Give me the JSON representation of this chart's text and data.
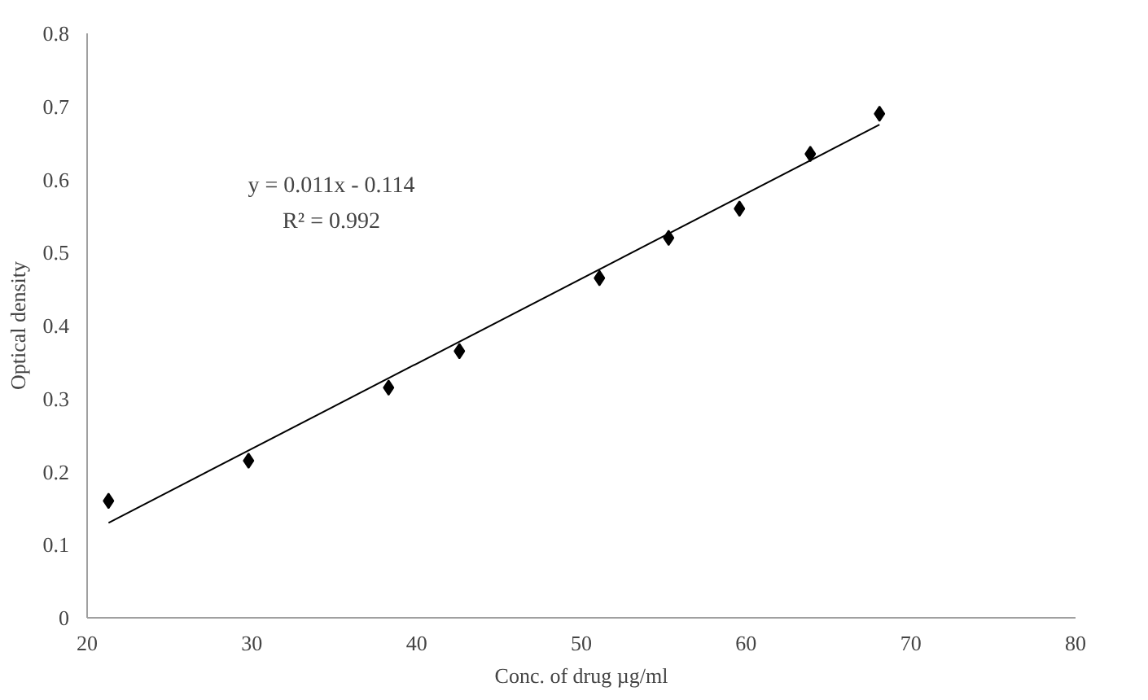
{
  "chart_data": {
    "type": "scatter",
    "xlabel": "Conc. of drug µg/ml",
    "ylabel": "Optical density",
    "xlim": [
      20,
      80
    ],
    "xticks": [
      20,
      30,
      40,
      50,
      60,
      70,
      80
    ],
    "ylim": [
      0,
      0.8
    ],
    "yticks": [
      0,
      0.1,
      0.2,
      0.3,
      0.4,
      0.5,
      0.6,
      0.7,
      0.8
    ],
    "grid": false,
    "series": [
      {
        "color": "#000000",
        "marker": "diamond",
        "x": [
          21.3,
          29.8,
          38.3,
          42.6,
          51.1,
          55.3,
          59.6,
          63.9,
          68.1
        ],
        "values": [
          0.16,
          0.215,
          0.315,
          0.365,
          0.465,
          0.52,
          0.56,
          0.635,
          0.69
        ]
      },
      {
        "type": "line",
        "marker": "none",
        "color": "#000000",
        "x": [
          21.3,
          68.1
        ],
        "values": [
          0.13,
          0.675
        ]
      }
    ],
    "annotations": [
      "y = 0.011x - 0.114",
      "R² = 0.992"
    ]
  }
}
